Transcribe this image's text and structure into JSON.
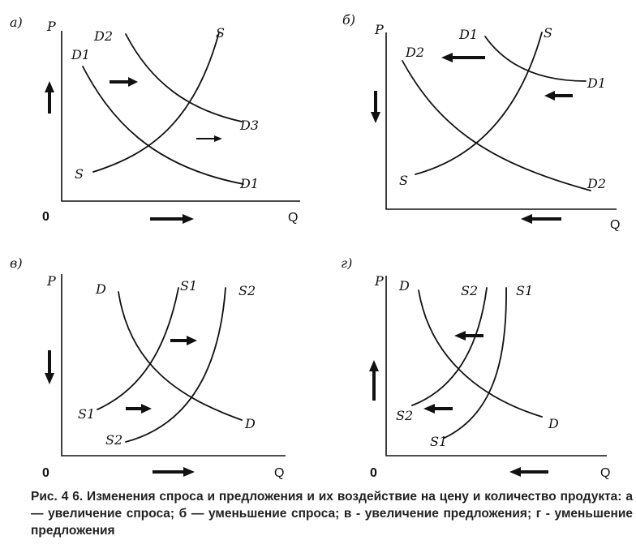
{
  "panels": {
    "a": {
      "tag": "а)",
      "p": "P",
      "o": "0",
      "q": "Q",
      "d1": "D1",
      "d2": "D2",
      "d3": "D3",
      "d1b": "D1",
      "s": "S",
      "sTop": "S"
    },
    "b": {
      "tag": "б)",
      "p": "P",
      "q": "Q",
      "d1": "D1",
      "d2": "D2",
      "d2b": "D2",
      "d1b": "D1",
      "s": "S",
      "sTop": "S"
    },
    "v": {
      "tag": "в)",
      "p": "P",
      "o": "0",
      "q": "Q",
      "d": "D",
      "d2": "D",
      "s1": "S1",
      "s2": "S2",
      "s1b": "S1",
      "s2b": "S2"
    },
    "g": {
      "tag": "г)",
      "p": "P",
      "o": "0",
      "q": "Q",
      "d": "D",
      "d2": "D",
      "s1": "S1",
      "s2": "S2",
      "s2b": "S2",
      "s1b": "S1"
    }
  },
  "caption": "Рис. 4 6. Изменения спроса и предложения и их воздействие на цену и количество продукта: а — увеличение спроса; б — уменьшение спроса; в - увеличение предложения; г - уменьшение предложения"
}
